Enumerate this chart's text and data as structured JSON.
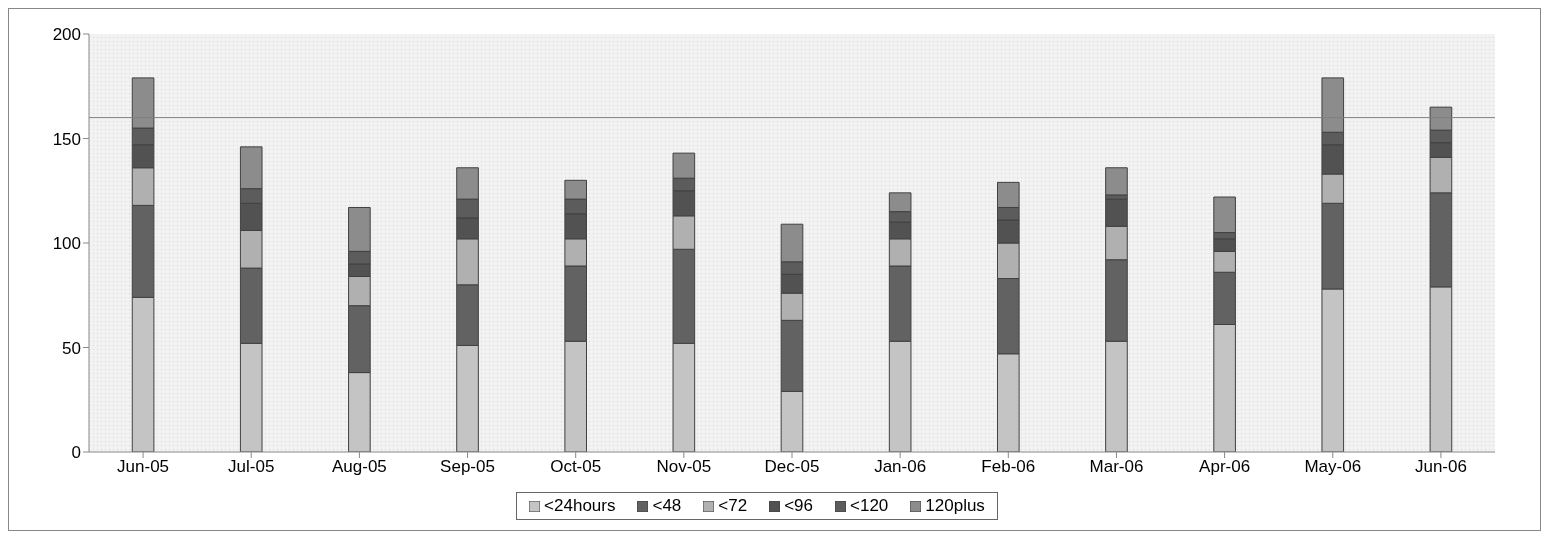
{
  "chart_data": {
    "type": "bar",
    "stacked": true,
    "categories": [
      "Jun-05",
      "Jul-05",
      "Aug-05",
      "Sep-05",
      "Oct-05",
      "Nov-05",
      "Dec-05",
      "Jan-06",
      "Feb-06",
      "Mar-06",
      "Apr-06",
      "May-06",
      "Jun-06"
    ],
    "series": [
      {
        "name": "<24hours",
        "color": "#c4c4c4",
        "values": [
          74,
          52,
          38,
          51,
          53,
          52,
          29,
          53,
          47,
          53,
          61,
          78,
          79
        ]
      },
      {
        "name": "<48",
        "color": "#626262",
        "values": [
          44,
          36,
          32,
          29,
          36,
          45,
          34,
          36,
          36,
          39,
          25,
          41,
          45
        ]
      },
      {
        "name": "<72",
        "color": "#b0b0b0",
        "values": [
          18,
          18,
          14,
          22,
          13,
          16,
          13,
          13,
          17,
          16,
          10,
          14,
          17
        ]
      },
      {
        "name": "<96",
        "color": "#525252",
        "values": [
          11,
          13,
          6,
          10,
          12,
          12,
          9,
          8,
          11,
          13,
          6,
          14,
          7
        ]
      },
      {
        "name": "<120",
        "color": "#5c5c5c",
        "values": [
          8,
          7,
          6,
          9,
          7,
          6,
          6,
          5,
          6,
          2,
          3,
          6,
          6
        ]
      },
      {
        "name": "120plus",
        "color": "#8c8c8c",
        "values": [
          24,
          20,
          21,
          15,
          9,
          12,
          18,
          9,
          12,
          13,
          17,
          26,
          11
        ]
      }
    ],
    "ylim": [
      0,
      200
    ],
    "yticks": [
      0,
      50,
      100,
      150,
      200
    ],
    "ref_lines": [
      {
        "axis": "y",
        "value": 160,
        "color": "#808080"
      }
    ],
    "legend": "bottom"
  }
}
